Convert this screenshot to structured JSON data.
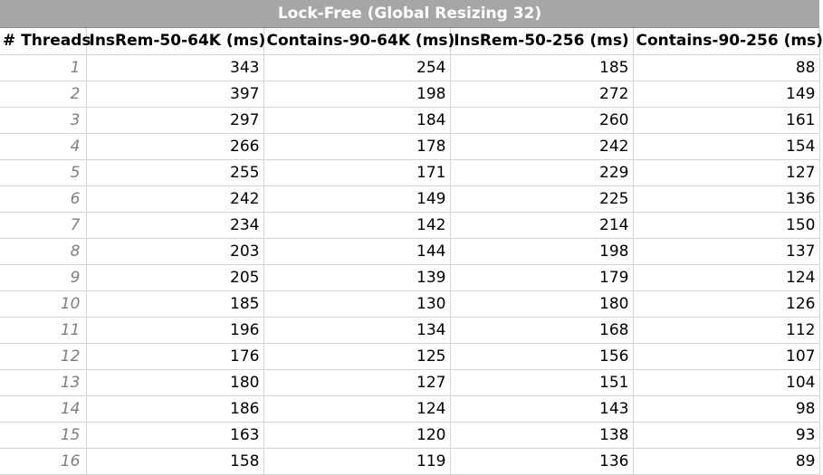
{
  "title": "Lock-Free (Global Resizing 32)",
  "columns": [
    "# Threads",
    "InsRem-50-64K (ms)",
    "Contains-90-64K (ms)",
    "InsRem-50-256 (ms)",
    "Contains-90-256 (ms)"
  ],
  "rows": [
    [
      "1",
      "343",
      "254",
      "185",
      "88"
    ],
    [
      "2",
      "397",
      "198",
      "272",
      "149"
    ],
    [
      "3",
      "297",
      "184",
      "260",
      "161"
    ],
    [
      "4",
      "266",
      "178",
      "242",
      "154"
    ],
    [
      "5",
      "255",
      "171",
      "229",
      "127"
    ],
    [
      "6",
      "242",
      "149",
      "225",
      "136"
    ],
    [
      "7",
      "234",
      "142",
      "214",
      "150"
    ],
    [
      "8",
      "203",
      "144",
      "198",
      "137"
    ],
    [
      "9",
      "205",
      "139",
      "179",
      "124"
    ],
    [
      "10",
      "185",
      "130",
      "180",
      "126"
    ],
    [
      "11",
      "196",
      "134",
      "168",
      "112"
    ],
    [
      "12",
      "176",
      "125",
      "156",
      "107"
    ],
    [
      "13",
      "180",
      "127",
      "151",
      "104"
    ],
    [
      "14",
      "186",
      "124",
      "143",
      "98"
    ],
    [
      "15",
      "163",
      "120",
      "138",
      "93"
    ],
    [
      "16",
      "158",
      "119",
      "136",
      "89"
    ]
  ]
}
